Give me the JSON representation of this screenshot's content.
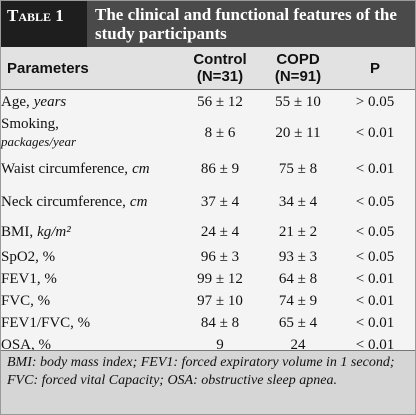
{
  "header": {
    "label": "Table 1",
    "title": "The clinical and functional features of the study participants"
  },
  "table": {
    "columns": [
      {
        "lines": [
          "Parameters"
        ]
      },
      {
        "lines": [
          "Control",
          "(N=31)"
        ]
      },
      {
        "lines": [
          "COPD",
          "(N=91)"
        ]
      },
      {
        "lines": [
          "P"
        ]
      }
    ],
    "rows": [
      {
        "parameter": "Age,",
        "unit": "years",
        "control": "56 ± 12",
        "copd": "55 ± 10",
        "p": "> 0.05"
      },
      {
        "parameter": "Smoking,",
        "unit": "packages/year",
        "control": "8 ± 6",
        "copd": "20 ± 11",
        "p": "< 0.01"
      },
      {
        "parameter": "Waist circumference,",
        "unit": "cm",
        "control": "86 ± 9",
        "copd": "75 ± 8",
        "p": "< 0.01"
      },
      {
        "parameter": "Neck circumference,",
        "unit": "cm",
        "control": "37 ± 4",
        "copd": "34 ± 4",
        "p": "< 0.05"
      },
      {
        "parameter": "BMI,",
        "unit": "kg/m²",
        "control": "24 ± 4",
        "copd": "21 ± 2",
        "p": "< 0.05"
      },
      {
        "parameter": "SpO2, %",
        "control": "96 ± 3",
        "copd": "93 ± 3",
        "p": "< 0.05"
      },
      {
        "parameter": "FEV1, %",
        "control": "99 ± 12",
        "copd": "64 ± 8",
        "p": "< 0.01"
      },
      {
        "parameter": "FVC, %",
        "control": "97 ± 10",
        "copd": "74 ± 9",
        "p": "< 0.01"
      },
      {
        "parameter": "FEV1/FVC, %",
        "control": "84 ± 8",
        "copd": "65 ± 4",
        "p": "< 0.01"
      },
      {
        "parameter": "OSA, %",
        "control": "9",
        "copd": "24",
        "p": "< 0.01"
      }
    ]
  },
  "footnote": "BMI: body mass index; FEV1: forced expiratory volume in 1 second; FVC: forced vital Capacity; OSA: obstructive sleep apnea."
}
